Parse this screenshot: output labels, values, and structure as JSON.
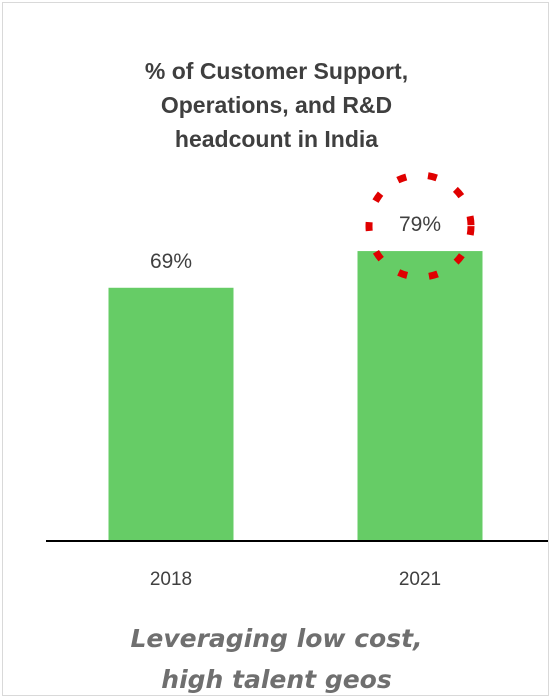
{
  "chart_data": {
    "type": "bar",
    "title_lines": [
      "% of Customer Support,",
      "Operations, and R&D",
      "headcount in India"
    ],
    "categories": [
      "2018",
      "2021"
    ],
    "values": [
      69,
      79
    ],
    "data_labels": [
      "69%",
      "79%"
    ],
    "unit": "%",
    "ylim": [
      0,
      100
    ],
    "grid": false,
    "legend": "none",
    "highlight": {
      "category": "2021",
      "style": "red dotted circle around data label"
    },
    "colors": {
      "bar": "#66cc66",
      "axis": "#000000",
      "highlight": "#e00000"
    }
  },
  "footer": {
    "lines": [
      "Leveraging low cost,",
      "high talent geos"
    ]
  }
}
